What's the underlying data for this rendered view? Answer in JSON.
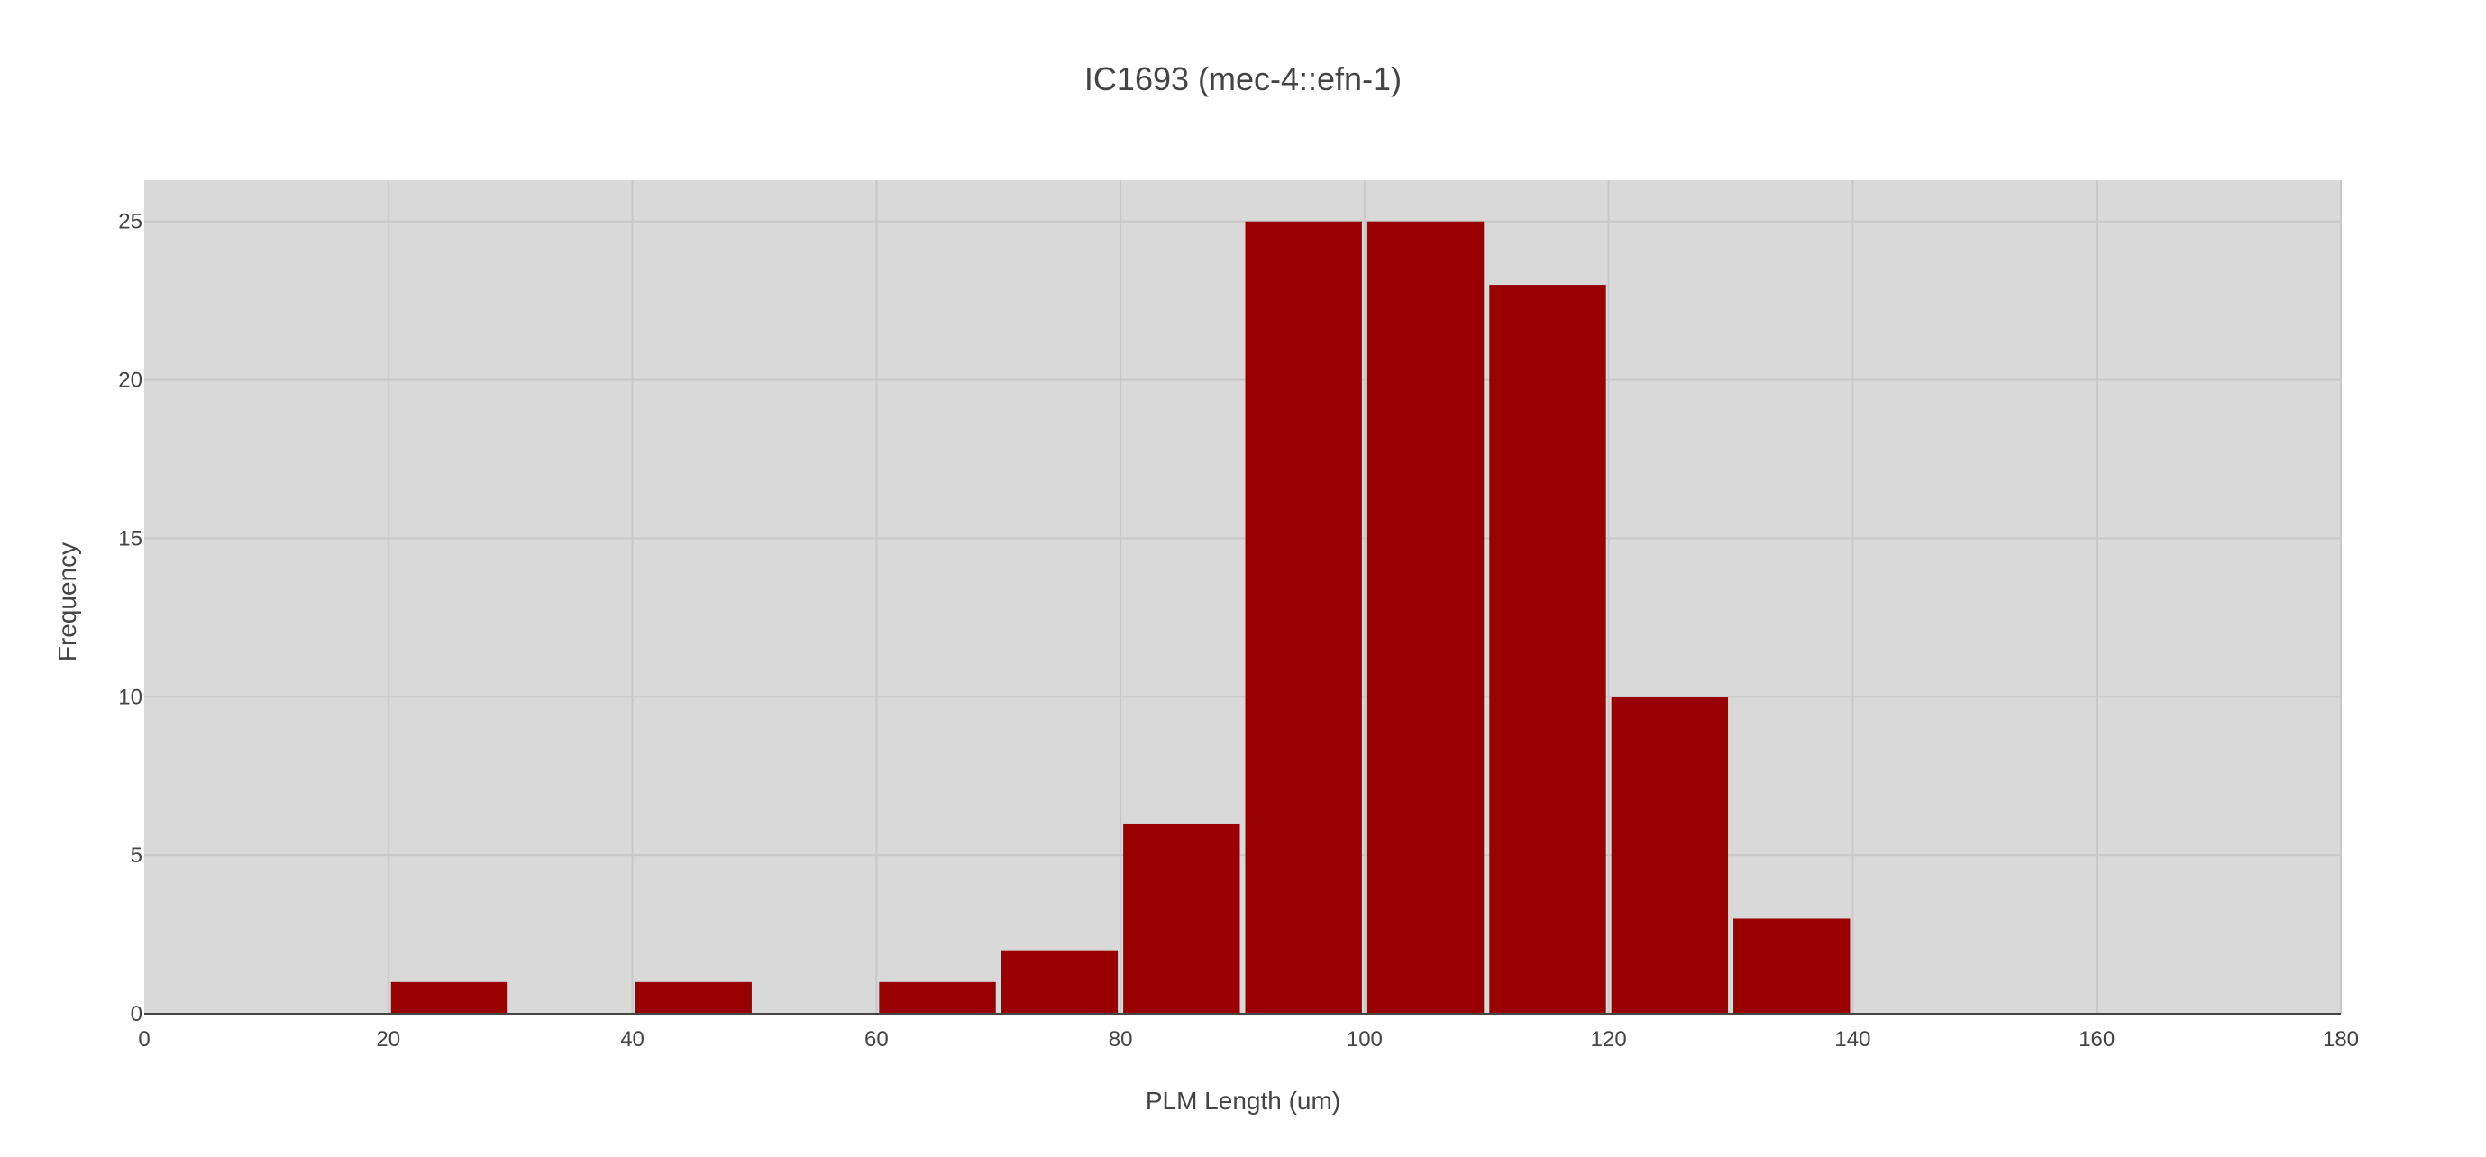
{
  "chart_data": {
    "type": "bar",
    "title": "IC1693 (mec-4::efn-1)",
    "xlabel": "PLM Length (um)",
    "ylabel": "Frequency",
    "xlim": [
      0,
      180
    ],
    "ylim": [
      0,
      26.3
    ],
    "grid": true,
    "x_ticks": [
      0,
      20,
      40,
      60,
      80,
      100,
      120,
      140,
      160,
      180
    ],
    "y_ticks": [
      0,
      5,
      10,
      15,
      20,
      25
    ],
    "bins": [
      {
        "start": 20,
        "end": 30,
        "value": 1
      },
      {
        "start": 40,
        "end": 50,
        "value": 1
      },
      {
        "start": 60,
        "end": 70,
        "value": 1
      },
      {
        "start": 70,
        "end": 80,
        "value": 2
      },
      {
        "start": 80,
        "end": 90,
        "value": 6
      },
      {
        "start": 90,
        "end": 100,
        "value": 25
      },
      {
        "start": 100,
        "end": 110,
        "value": 25
      },
      {
        "start": 110,
        "end": 120,
        "value": 23
      },
      {
        "start": 120,
        "end": 130,
        "value": 10
      },
      {
        "start": 130,
        "end": 140,
        "value": 3
      }
    ],
    "colors": {
      "bar": "#990000",
      "plot_background": "#d9d9d9",
      "grid": "#c8c8c8",
      "axis_line": "#444444",
      "text": "#444444"
    }
  }
}
